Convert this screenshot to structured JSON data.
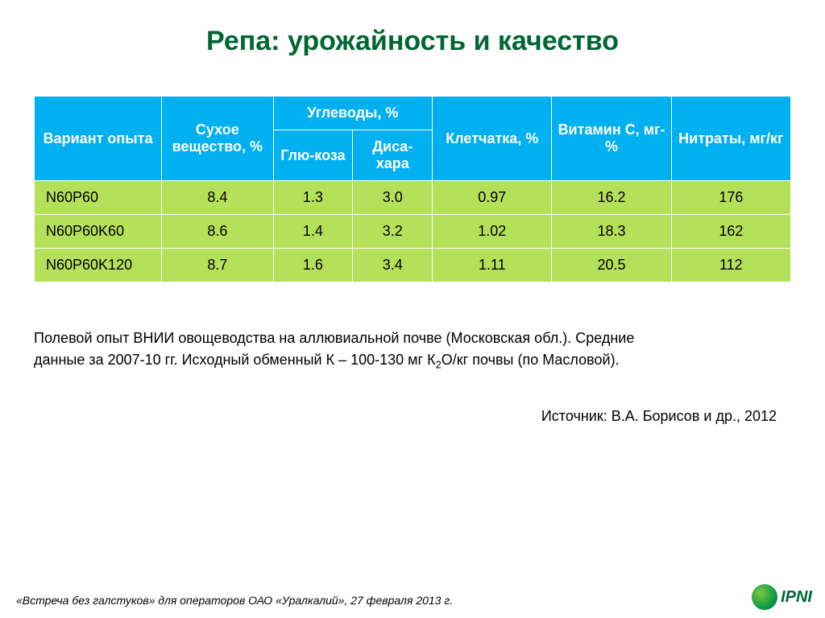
{
  "title": "Репа: урожайность и качество",
  "table": {
    "header_bg": "#00b0f0",
    "header_fg": "#ffffff",
    "row_bg": "#b5e05a",
    "columns": {
      "variant": "Вариант опыта",
      "dry_matter": "Сухое вещество, %",
      "carbs": "Углеводы, %",
      "carbs_sub1": "Глю-коза",
      "carbs_sub2": "Диса-хара",
      "fiber": "Клетчатка, %",
      "vitc": "Витамин С, мг-%",
      "nitrates": "Нитраты, мг/кг"
    },
    "rows": [
      {
        "variant": "N60P60",
        "dry": "8.4",
        "glu": "1.3",
        "dis": "3.0",
        "fiber": "0.97",
        "vitc": "16.2",
        "nit": "176"
      },
      {
        "variant": "N60P60K60",
        "dry": "8.6",
        "glu": "1.4",
        "dis": "3.2",
        "fiber": "1.02",
        "vitc": "18.3",
        "nit": "162"
      },
      {
        "variant": "N60P60K120",
        "dry": "8.7",
        "glu": "1.6",
        "dis": "3.4",
        "fiber": "1.11",
        "vitc": "20.5",
        "nit": "112"
      }
    ]
  },
  "caption_line1": "Полевой опыт ВНИИ овощеводства на аллювиальной почве (Московская обл.). Средние",
  "caption_line2_a": "данные за 2007-10 гг. Исходный обменный К – 100-130 мг К",
  "caption_line2_sub": "2",
  "caption_line2_b": "О/кг почвы (по Масловой).",
  "source": "Источник: В.А. Борисов и др., 2012",
  "footer": "«Встреча без галстуков» для операторов ОАО «Уралкалий», 27 февраля 2013 г.",
  "logo_text": "IPNI",
  "colors": {
    "title": "#006633",
    "background": "#ffffff"
  }
}
